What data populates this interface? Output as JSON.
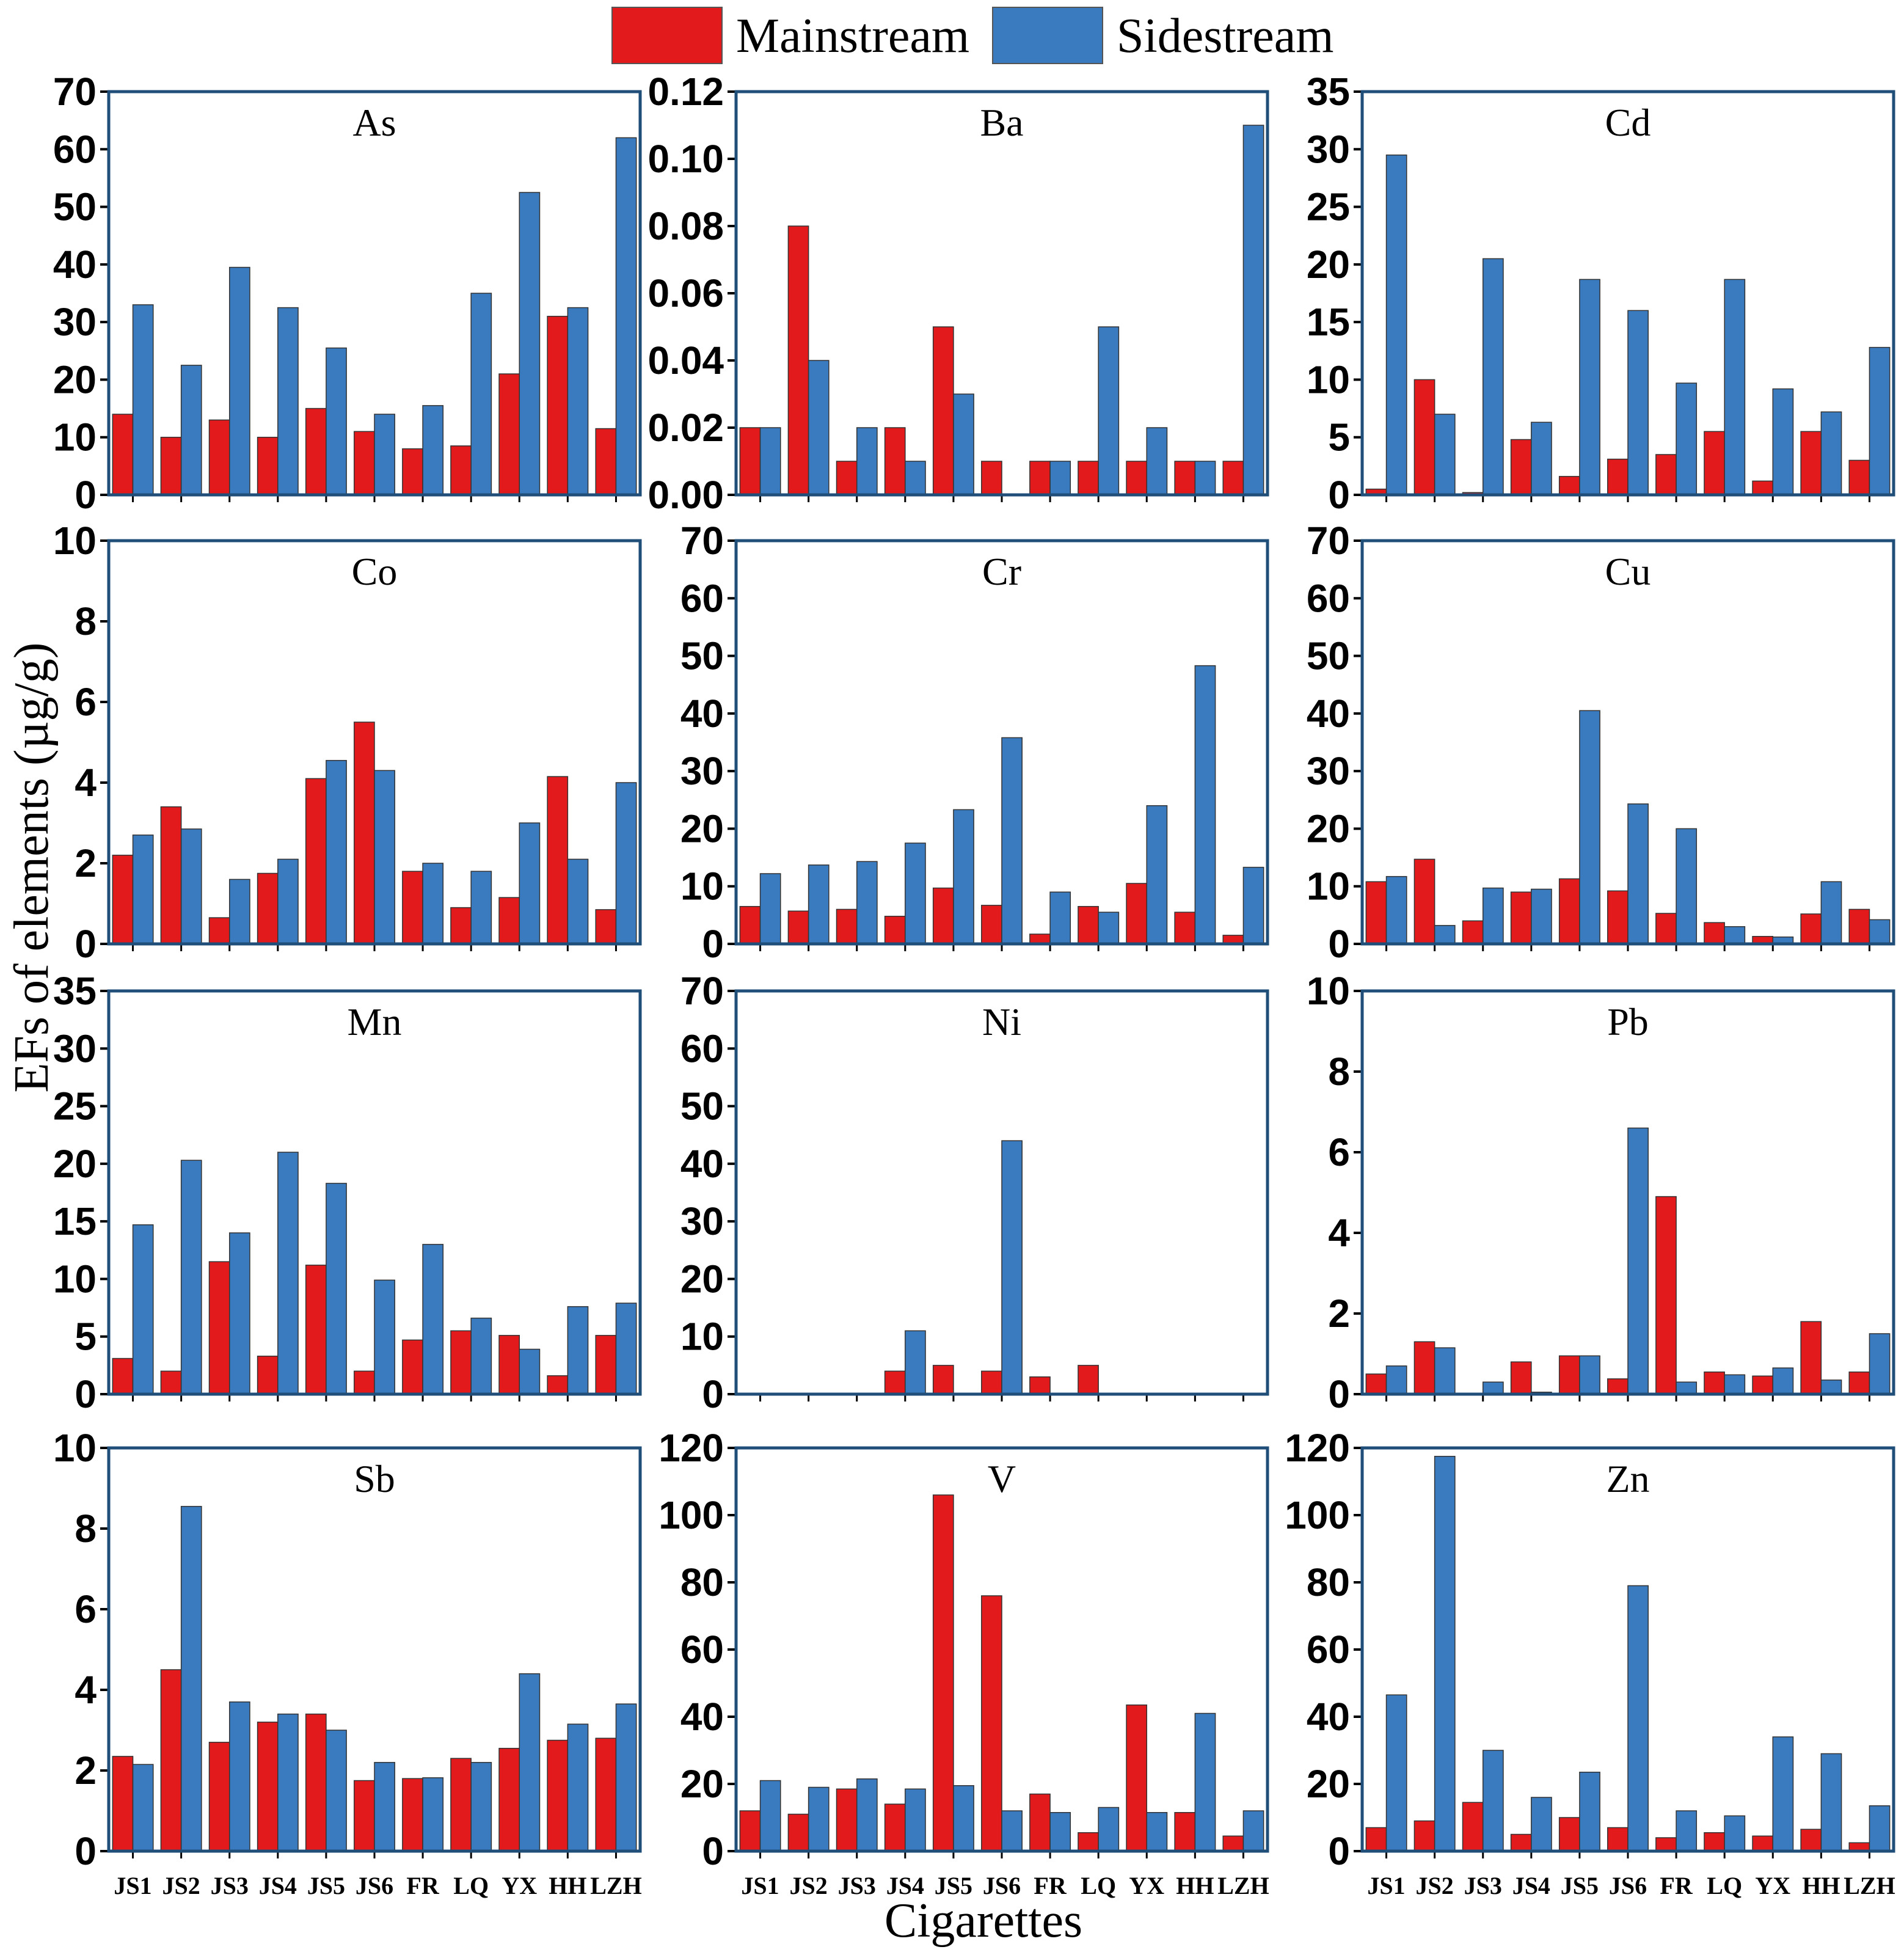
{
  "figure": {
    "ylabel": "EFs of elements (µg/g)",
    "xlabel": "Cigarettes",
    "legend": [
      {
        "name": "Mainstream",
        "color": "#e31a1c"
      },
      {
        "name": "Sidestream",
        "color": "#3a7bbf"
      }
    ],
    "frame_color": "#1f4e79"
  },
  "chart_data": [
    {
      "type": "bar",
      "title": "As",
      "categories": [
        "JS1",
        "JS2",
        "JS3",
        "JS4",
        "JS5",
        "JS6",
        "FR",
        "LQ",
        "YX",
        "HH",
        "LZH"
      ],
      "ylim": [
        0,
        70
      ],
      "yticks": [
        "0",
        "10",
        "20",
        "30",
        "40",
        "50",
        "60",
        "70"
      ],
      "tick_values": [
        0,
        10,
        20,
        30,
        40,
        50,
        60,
        70
      ],
      "series": [
        {
          "name": "Mainstream",
          "values": [
            14,
            10,
            13,
            10,
            15,
            11,
            8,
            8.5,
            21,
            31,
            11.5
          ]
        },
        {
          "name": "Sidestream",
          "values": [
            33,
            22.5,
            39.5,
            32.5,
            25.5,
            14,
            15.5,
            35,
            52.5,
            32.5,
            62
          ]
        }
      ]
    },
    {
      "type": "bar",
      "title": "Ba",
      "categories": [
        "JS1",
        "JS2",
        "JS3",
        "JS4",
        "JS5",
        "JS6",
        "FR",
        "LQ",
        "YX",
        "HH",
        "LZH"
      ],
      "ylim": [
        0,
        0.12
      ],
      "yticks": [
        "0.00",
        "0.02",
        "0.04",
        "0.06",
        "0.08",
        "0.10",
        "0.12"
      ],
      "tick_values": [
        0,
        0.02,
        0.04,
        0.06,
        0.08,
        0.1,
        0.12
      ],
      "series": [
        {
          "name": "Mainstream",
          "values": [
            0.02,
            0.08,
            0.01,
            0.02,
            0.05,
            0.01,
            0.01,
            0.01,
            0.01,
            0.01,
            0.01
          ]
        },
        {
          "name": "Sidestream",
          "values": [
            0.02,
            0.04,
            0.02,
            0.01,
            0.03,
            0,
            0.01,
            0.05,
            0.02,
            0.01,
            0.11
          ]
        }
      ]
    },
    {
      "type": "bar",
      "title": "Cd",
      "categories": [
        "JS1",
        "JS2",
        "JS3",
        "JS4",
        "JS5",
        "JS6",
        "FR",
        "LQ",
        "YX",
        "HH",
        "LZH"
      ],
      "ylim": [
        0,
        35
      ],
      "yticks": [
        "0",
        "5",
        "10",
        "15",
        "20",
        "25",
        "30",
        "35"
      ],
      "tick_values": [
        0,
        5,
        10,
        15,
        20,
        25,
        30,
        35
      ],
      "series": [
        {
          "name": "Mainstream",
          "values": [
            0.5,
            10,
            0.2,
            4.8,
            1.6,
            3.1,
            3.5,
            5.5,
            1.2,
            5.5,
            3
          ]
        },
        {
          "name": "Sidestream",
          "values": [
            29.5,
            7,
            20.5,
            6.3,
            18.7,
            16,
            9.7,
            18.7,
            9.2,
            7.2,
            12.8
          ]
        }
      ]
    },
    {
      "type": "bar",
      "title": "Co",
      "categories": [
        "JS1",
        "JS2",
        "JS3",
        "JS4",
        "JS5",
        "JS6",
        "FR",
        "LQ",
        "YX",
        "HH",
        "LZH"
      ],
      "ylim": [
        0,
        10
      ],
      "yticks": [
        "0",
        "2",
        "4",
        "6",
        "8",
        "10"
      ],
      "tick_values": [
        0,
        2,
        4,
        6,
        8,
        10
      ],
      "series": [
        {
          "name": "Mainstream",
          "values": [
            2.2,
            3.4,
            0.65,
            1.75,
            4.1,
            5.5,
            1.8,
            0.9,
            1.15,
            4.15,
            0.85
          ]
        },
        {
          "name": "Sidestream",
          "values": [
            2.7,
            2.85,
            1.6,
            2.1,
            4.55,
            4.3,
            2,
            1.8,
            3,
            2.1,
            4
          ]
        }
      ]
    },
    {
      "type": "bar",
      "title": "Cr",
      "categories": [
        "JS1",
        "JS2",
        "JS3",
        "JS4",
        "JS5",
        "JS6",
        "FR",
        "LQ",
        "YX",
        "HH",
        "LZH"
      ],
      "ylim": [
        0,
        70
      ],
      "yticks": [
        "0",
        "10",
        "20",
        "30",
        "40",
        "50",
        "60",
        "70"
      ],
      "tick_values": [
        0,
        10,
        20,
        30,
        40,
        50,
        60,
        70
      ],
      "series": [
        {
          "name": "Mainstream",
          "values": [
            6.5,
            5.7,
            6,
            4.8,
            9.7,
            6.7,
            1.7,
            6.5,
            10.5,
            5.5,
            1.5
          ]
        },
        {
          "name": "Sidestream",
          "values": [
            12.2,
            13.7,
            14.3,
            17.5,
            23.3,
            35.8,
            9,
            5.5,
            24,
            48.3,
            13.3
          ]
        }
      ]
    },
    {
      "type": "bar",
      "title": "Cu",
      "categories": [
        "JS1",
        "JS2",
        "JS3",
        "JS4",
        "JS5",
        "JS6",
        "FR",
        "LQ",
        "YX",
        "HH",
        "LZH"
      ],
      "ylim": [
        0,
        70
      ],
      "yticks": [
        "0",
        "10",
        "20",
        "30",
        "40",
        "50",
        "60",
        "70"
      ],
      "tick_values": [
        0,
        10,
        20,
        30,
        40,
        50,
        60,
        70
      ],
      "series": [
        {
          "name": "Mainstream",
          "values": [
            10.8,
            14.7,
            4,
            9,
            11.3,
            9.2,
            5.3,
            3.7,
            1.3,
            5.2,
            6
          ]
        },
        {
          "name": "Sidestream",
          "values": [
            11.7,
            3.2,
            9.7,
            9.5,
            40.5,
            24.3,
            20,
            3,
            1.2,
            10.8,
            4.2
          ]
        }
      ]
    },
    {
      "type": "bar",
      "title": "Mn",
      "categories": [
        "JS1",
        "JS2",
        "JS3",
        "JS4",
        "JS5",
        "JS6",
        "FR",
        "LQ",
        "YX",
        "HH",
        "LZH"
      ],
      "ylim": [
        0,
        35
      ],
      "yticks": [
        "0",
        "5",
        "10",
        "15",
        "20",
        "25",
        "30",
        "35"
      ],
      "tick_values": [
        0,
        5,
        10,
        15,
        20,
        25,
        30,
        35
      ],
      "series": [
        {
          "name": "Mainstream",
          "values": [
            3.1,
            2,
            11.5,
            3.3,
            11.2,
            2,
            4.7,
            5.5,
            5.1,
            1.6,
            5.1
          ]
        },
        {
          "name": "Sidestream",
          "values": [
            14.7,
            20.3,
            14,
            21,
            18.3,
            9.9,
            13,
            6.6,
            3.9,
            7.6,
            7.9
          ]
        }
      ]
    },
    {
      "type": "bar",
      "title": "Ni",
      "categories": [
        "JS1",
        "JS2",
        "JS3",
        "JS4",
        "JS5",
        "JS6",
        "FR",
        "LQ",
        "YX",
        "HH",
        "LZH"
      ],
      "ylim": [
        0,
        70
      ],
      "yticks": [
        "0",
        "10",
        "20",
        "30",
        "40",
        "50",
        "60",
        "70"
      ],
      "tick_values": [
        0,
        10,
        20,
        30,
        40,
        50,
        60,
        70
      ],
      "series": [
        {
          "name": "Mainstream",
          "values": [
            0,
            0,
            0,
            4,
            5,
            4,
            3,
            5,
            0,
            0,
            0
          ]
        },
        {
          "name": "Sidestream",
          "values": [
            0,
            0,
            0,
            11,
            0,
            44,
            0,
            0,
            0,
            0,
            0
          ]
        }
      ]
    },
    {
      "type": "bar",
      "title": "Pb",
      "categories": [
        "JS1",
        "JS2",
        "JS3",
        "JS4",
        "JS5",
        "JS6",
        "FR",
        "LQ",
        "YX",
        "HH",
        "LZH"
      ],
      "ylim": [
        0,
        10
      ],
      "yticks": [
        "0",
        "2",
        "4",
        "6",
        "8",
        "10"
      ],
      "tick_values": [
        0,
        2,
        4,
        6,
        8,
        10
      ],
      "series": [
        {
          "name": "Mainstream",
          "values": [
            0.5,
            1.3,
            0,
            0.8,
            0.95,
            0.38,
            4.9,
            0.55,
            0.45,
            1.8,
            0.55
          ]
        },
        {
          "name": "Sidestream",
          "values": [
            0.7,
            1.15,
            0.3,
            0.05,
            0.95,
            6.6,
            0.3,
            0.48,
            0.65,
            0.35,
            1.5
          ]
        }
      ]
    },
    {
      "type": "bar",
      "title": "Sb",
      "categories": [
        "JS1",
        "JS2",
        "JS3",
        "JS4",
        "JS5",
        "JS6",
        "FR",
        "LQ",
        "YX",
        "HH",
        "LZH"
      ],
      "ylim": [
        0,
        10
      ],
      "yticks": [
        "0",
        "2",
        "4",
        "6",
        "8",
        "10"
      ],
      "tick_values": [
        0,
        2,
        4,
        6,
        8,
        10
      ],
      "series": [
        {
          "name": "Mainstream",
          "values": [
            2.35,
            4.5,
            2.7,
            3.2,
            3.4,
            1.75,
            1.8,
            2.3,
            2.55,
            2.75,
            2.8
          ]
        },
        {
          "name": "Sidestream",
          "values": [
            2.15,
            8.55,
            3.7,
            3.4,
            3,
            2.2,
            1.82,
            2.2,
            4.4,
            3.15,
            3.65
          ]
        }
      ]
    },
    {
      "type": "bar",
      "title": "V",
      "categories": [
        "JS1",
        "JS2",
        "JS3",
        "JS4",
        "JS5",
        "JS6",
        "FR",
        "LQ",
        "YX",
        "HH",
        "LZH"
      ],
      "ylim": [
        0,
        120
      ],
      "yticks": [
        "0",
        "20",
        "40",
        "60",
        "80",
        "100",
        "120"
      ],
      "tick_values": [
        0,
        20,
        40,
        60,
        80,
        100,
        120
      ],
      "series": [
        {
          "name": "Mainstream",
          "values": [
            12,
            11,
            18.5,
            14,
            106,
            76,
            17,
            5.5,
            43.5,
            11.5,
            4.5
          ]
        },
        {
          "name": "Sidestream",
          "values": [
            21,
            19,
            21.5,
            18.5,
            19.5,
            12,
            11.5,
            13,
            11.5,
            41,
            12
          ]
        }
      ]
    },
    {
      "type": "bar",
      "title": "Zn",
      "categories": [
        "JS1",
        "JS2",
        "JS3",
        "JS4",
        "JS5",
        "JS6",
        "FR",
        "LQ",
        "YX",
        "HH",
        "LZH"
      ],
      "ylim": [
        0,
        120
      ],
      "yticks": [
        "0",
        "20",
        "40",
        "60",
        "80",
        "100",
        "120"
      ],
      "tick_values": [
        0,
        20,
        40,
        60,
        80,
        100,
        120
      ],
      "series": [
        {
          "name": "Mainstream",
          "values": [
            7,
            9,
            14.5,
            5,
            10,
            7,
            4,
            5.5,
            4.5,
            6.5,
            2.5
          ]
        },
        {
          "name": "Sidestream",
          "values": [
            46.5,
            117.5,
            30,
            16,
            23.5,
            79,
            12,
            10.5,
            34,
            29,
            13.5
          ]
        }
      ]
    }
  ]
}
